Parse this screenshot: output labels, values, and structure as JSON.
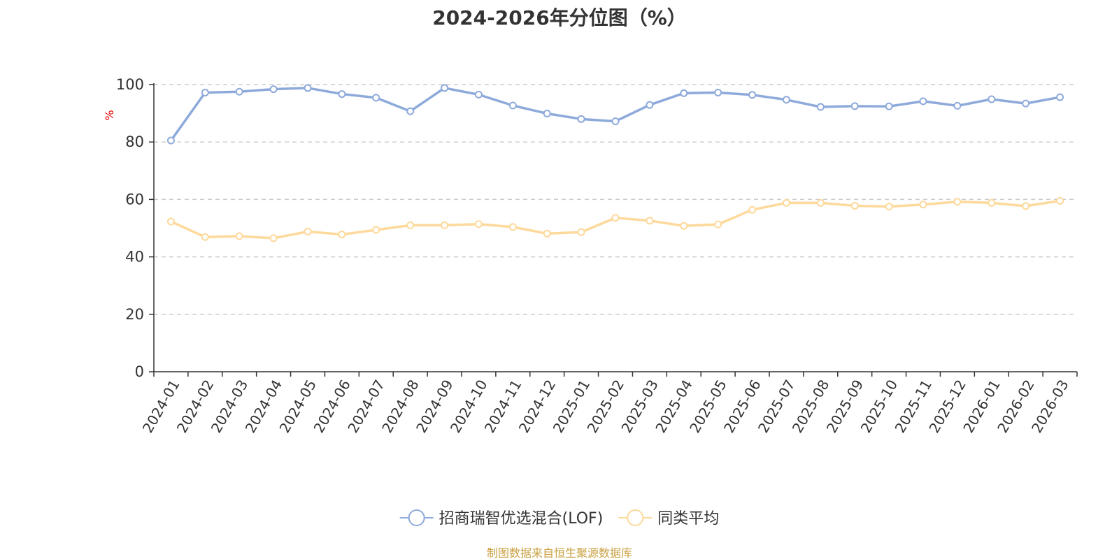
{
  "title": "2024-2026年分位图（%）",
  "source_note": "制图数据来自恒生聚源数据库",
  "colors": {
    "series_fund": "#8eaadb",
    "series_avg": "#fdd99b",
    "axis": "#333333",
    "grid": "#cccccc",
    "ylabel": "#e60000",
    "source_note": "#c8a040",
    "marker_fill": "#ffffff"
  },
  "chart_data": {
    "type": "line",
    "title": "2024-2026年分位图（%）",
    "ylabel": "%",
    "xlabel": "",
    "ylim": [
      0,
      100
    ],
    "yticks": [
      0,
      20,
      40,
      60,
      80,
      100
    ],
    "grid": true,
    "legend_position": "bottom-center",
    "categories": [
      "2024-01",
      "2024-02",
      "2024-03",
      "2024-04",
      "2024-05",
      "2024-06",
      "2024-07",
      "2024-08",
      "2024-09",
      "2024-10",
      "2024-11",
      "2024-12",
      "2025-01",
      "2025-02",
      "2025-03",
      "2025-04",
      "2025-05",
      "2025-06",
      "2025-07",
      "2025-08",
      "2025-09",
      "2025-10",
      "2025-11",
      "2025-12",
      "2026-01",
      "2026-02",
      "2026-03"
    ],
    "series": [
      {
        "name": "招商瑞智优选混合(LOF)",
        "values": [
          80.5,
          97.2,
          97.5,
          98.4,
          98.8,
          96.7,
          95.4,
          90.7,
          98.8,
          96.5,
          92.7,
          89.9,
          88.0,
          87.2,
          92.9,
          97.0,
          97.2,
          96.4,
          94.7,
          92.2,
          92.5,
          92.4,
          94.2,
          92.6,
          94.9,
          93.4,
          95.6
        ]
      },
      {
        "name": "同类平均",
        "values": [
          52.3,
          46.9,
          47.2,
          46.5,
          48.8,
          47.8,
          49.4,
          51.0,
          51.0,
          51.4,
          50.4,
          48.1,
          48.6,
          53.6,
          52.6,
          50.8,
          51.3,
          56.4,
          58.8,
          58.8,
          57.8,
          57.5,
          58.2,
          59.2,
          58.8,
          57.7,
          59.5
        ]
      }
    ]
  }
}
